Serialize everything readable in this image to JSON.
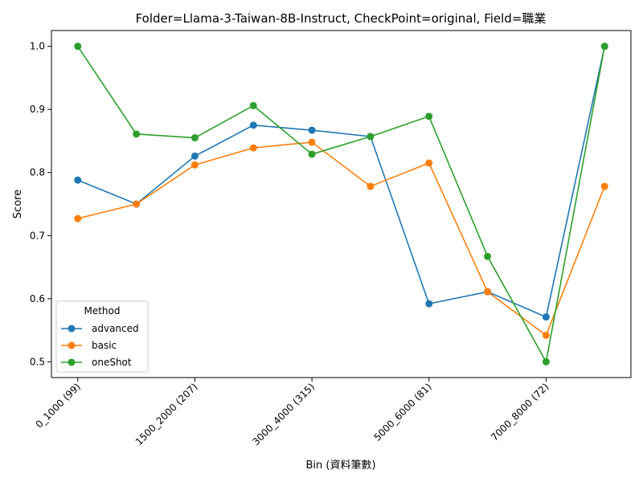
{
  "chart_data": {
    "type": "line",
    "title": "Folder=Llama-3-Taiwan-8B-Instruct, CheckPoint=original, Field=職業",
    "xlabel": "Bin (資料筆數)",
    "ylabel": "Score",
    "x_tick_labels": [
      "0_1000 (99)",
      "1500_2000 (207)",
      "3000_4000 (315)",
      "5000_6000 (81)",
      "7000_8000 (72)"
    ],
    "x_tick_positions": [
      0,
      2,
      4,
      6,
      8
    ],
    "x_points": [
      0,
      1,
      2,
      3,
      4,
      5,
      6,
      7,
      8,
      9
    ],
    "y_ticks": [
      "0.5",
      "0.6",
      "0.7",
      "0.8",
      "0.9",
      "1.0"
    ],
    "y_tick_values": [
      0.5,
      0.6,
      0.7,
      0.8,
      0.9,
      1.0
    ],
    "ylim": [
      0.475,
      1.025
    ],
    "xlim": [
      -0.45,
      9.45
    ],
    "legend": {
      "title": "Method",
      "position": "lower-left"
    },
    "series": [
      {
        "name": "advanced",
        "color": "#1f77b4",
        "values": [
          0.788,
          0.75,
          0.826,
          0.875,
          0.867,
          0.857,
          0.592,
          0.611,
          0.571,
          1.0
        ]
      },
      {
        "name": "basic",
        "color": "#ff7f0e",
        "values": [
          0.727,
          0.75,
          0.812,
          0.839,
          0.848,
          0.778,
          0.815,
          0.611,
          0.542,
          0.778
        ]
      },
      {
        "name": "oneShot",
        "color": "#2ca02c",
        "values": [
          1.0,
          0.861,
          0.855,
          0.906,
          0.829,
          0.857,
          0.889,
          0.667,
          0.5,
          1.0
        ]
      }
    ]
  }
}
